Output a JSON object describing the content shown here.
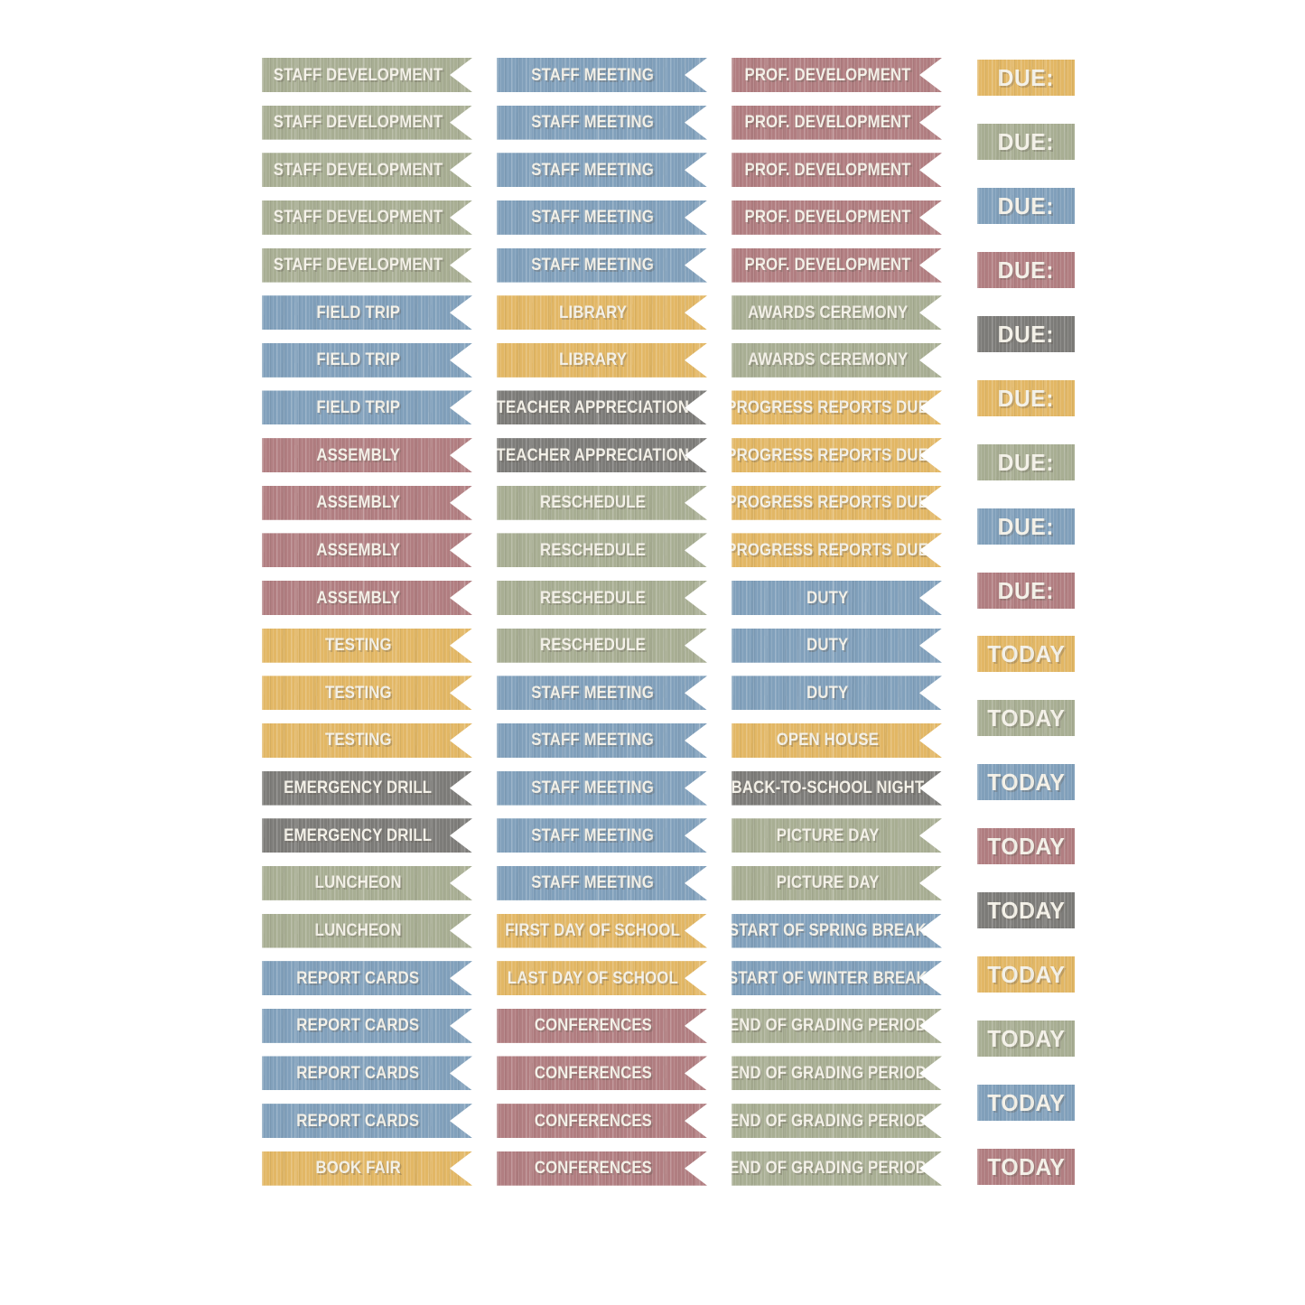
{
  "palette": {
    "yellow": "#e2b765",
    "green": "#a8ae93",
    "blue": "#81a0bb",
    "red": "#b17e81",
    "gray": "#7d7c79",
    "ink": "#f3f0e7",
    "sheet_background": "#ffffff"
  },
  "columns": [
    {
      "name": "events-column-1",
      "style": "flag",
      "stickers": [
        {
          "label": "STAFF DEVELOPMENT",
          "color": "green"
        },
        {
          "label": "STAFF DEVELOPMENT",
          "color": "green"
        },
        {
          "label": "STAFF DEVELOPMENT",
          "color": "green"
        },
        {
          "label": "STAFF DEVELOPMENT",
          "color": "green"
        },
        {
          "label": "STAFF DEVELOPMENT",
          "color": "green"
        },
        {
          "label": "FIELD TRIP",
          "color": "blue"
        },
        {
          "label": "FIELD TRIP",
          "color": "blue"
        },
        {
          "label": "FIELD TRIP",
          "color": "blue"
        },
        {
          "label": "ASSEMBLY",
          "color": "red"
        },
        {
          "label": "ASSEMBLY",
          "color": "red"
        },
        {
          "label": "ASSEMBLY",
          "color": "red"
        },
        {
          "label": "ASSEMBLY",
          "color": "red"
        },
        {
          "label": "TESTING",
          "color": "yellow"
        },
        {
          "label": "TESTING",
          "color": "yellow"
        },
        {
          "label": "TESTING",
          "color": "yellow"
        },
        {
          "label": "EMERGENCY DRILL",
          "color": "gray"
        },
        {
          "label": "EMERGENCY DRILL",
          "color": "gray"
        },
        {
          "label": "LUNCHEON",
          "color": "green"
        },
        {
          "label": "LUNCHEON",
          "color": "green"
        },
        {
          "label": "REPORT CARDS",
          "color": "blue"
        },
        {
          "label": "REPORT CARDS",
          "color": "blue"
        },
        {
          "label": "REPORT CARDS",
          "color": "blue"
        },
        {
          "label": "REPORT CARDS",
          "color": "blue"
        },
        {
          "label": "BOOK FAIR",
          "color": "yellow"
        }
      ]
    },
    {
      "name": "events-column-2",
      "style": "flag",
      "stickers": [
        {
          "label": "STAFF MEETING",
          "color": "blue"
        },
        {
          "label": "STAFF MEETING",
          "color": "blue"
        },
        {
          "label": "STAFF MEETING",
          "color": "blue"
        },
        {
          "label": "STAFF MEETING",
          "color": "blue"
        },
        {
          "label": "STAFF MEETING",
          "color": "blue"
        },
        {
          "label": "LIBRARY",
          "color": "yellow"
        },
        {
          "label": "LIBRARY",
          "color": "yellow"
        },
        {
          "label": "TEACHER APPRECIATION",
          "color": "gray"
        },
        {
          "label": "TEACHER APPRECIATION",
          "color": "gray"
        },
        {
          "label": "RESCHEDULE",
          "color": "green"
        },
        {
          "label": "RESCHEDULE",
          "color": "green"
        },
        {
          "label": "RESCHEDULE",
          "color": "green"
        },
        {
          "label": "RESCHEDULE",
          "color": "green"
        },
        {
          "label": "STAFF MEETING",
          "color": "blue"
        },
        {
          "label": "STAFF MEETING",
          "color": "blue"
        },
        {
          "label": "STAFF MEETING",
          "color": "blue"
        },
        {
          "label": "STAFF MEETING",
          "color": "blue"
        },
        {
          "label": "STAFF MEETING",
          "color": "blue"
        },
        {
          "label": "FIRST DAY OF SCHOOL",
          "color": "yellow"
        },
        {
          "label": "LAST DAY OF SCHOOL",
          "color": "yellow"
        },
        {
          "label": "CONFERENCES",
          "color": "red"
        },
        {
          "label": "CONFERENCES",
          "color": "red"
        },
        {
          "label": "CONFERENCES",
          "color": "red"
        },
        {
          "label": "CONFERENCES",
          "color": "red"
        }
      ]
    },
    {
      "name": "events-column-3",
      "style": "flag",
      "stickers": [
        {
          "label": "PROF. DEVELOPMENT",
          "color": "red"
        },
        {
          "label": "PROF. DEVELOPMENT",
          "color": "red"
        },
        {
          "label": "PROF. DEVELOPMENT",
          "color": "red"
        },
        {
          "label": "PROF. DEVELOPMENT",
          "color": "red"
        },
        {
          "label": "PROF. DEVELOPMENT",
          "color": "red"
        },
        {
          "label": "AWARDS CEREMONY",
          "color": "green"
        },
        {
          "label": "AWARDS CEREMONY",
          "color": "green"
        },
        {
          "label": "PROGRESS REPORTS DUE",
          "color": "yellow"
        },
        {
          "label": "PROGRESS REPORTS DUE",
          "color": "yellow"
        },
        {
          "label": "PROGRESS REPORTS DUE",
          "color": "yellow"
        },
        {
          "label": "PROGRESS REPORTS DUE",
          "color": "yellow"
        },
        {
          "label": "DUTY",
          "color": "blue"
        },
        {
          "label": "DUTY",
          "color": "blue"
        },
        {
          "label": "DUTY",
          "color": "blue"
        },
        {
          "label": "OPEN HOUSE",
          "color": "yellow"
        },
        {
          "label": "BACK-TO-SCHOOL NIGHT",
          "color": "gray"
        },
        {
          "label": "PICTURE DAY",
          "color": "green"
        },
        {
          "label": "PICTURE DAY",
          "color": "green"
        },
        {
          "label": "START OF SPRING BREAK",
          "color": "blue"
        },
        {
          "label": "START OF WINTER BREAK",
          "color": "blue"
        },
        {
          "label": "END OF GRADING PERIOD",
          "color": "green"
        },
        {
          "label": "END OF GRADING PERIOD",
          "color": "green"
        },
        {
          "label": "END OF GRADING PERIOD",
          "color": "green"
        },
        {
          "label": "END OF GRADING PERIOD",
          "color": "green"
        }
      ]
    },
    {
      "name": "due-today-column",
      "style": "tag",
      "stickers": [
        {
          "label": "DUE:",
          "color": "yellow"
        },
        {
          "label": "DUE:",
          "color": "green"
        },
        {
          "label": "DUE:",
          "color": "blue"
        },
        {
          "label": "DUE:",
          "color": "red"
        },
        {
          "label": "DUE:",
          "color": "gray"
        },
        {
          "label": "DUE:",
          "color": "yellow"
        },
        {
          "label": "DUE:",
          "color": "green"
        },
        {
          "label": "DUE:",
          "color": "blue"
        },
        {
          "label": "DUE:",
          "color": "red"
        },
        {
          "label": "TODAY",
          "color": "yellow"
        },
        {
          "label": "TODAY",
          "color": "green"
        },
        {
          "label": "TODAY",
          "color": "blue"
        },
        {
          "label": "TODAY",
          "color": "red"
        },
        {
          "label": "TODAY",
          "color": "gray"
        },
        {
          "label": "TODAY",
          "color": "yellow"
        },
        {
          "label": "TODAY",
          "color": "green"
        },
        {
          "label": "TODAY",
          "color": "blue"
        },
        {
          "label": "TODAY",
          "color": "red"
        }
      ]
    }
  ]
}
